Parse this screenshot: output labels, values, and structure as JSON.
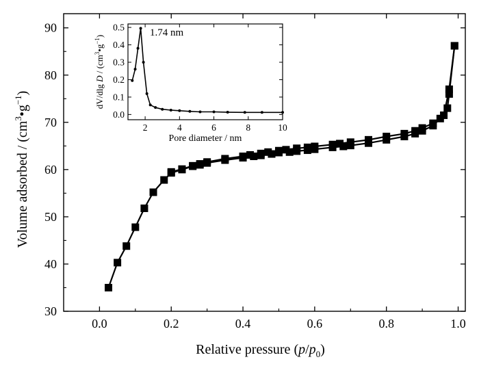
{
  "chart_data": [
    {
      "type": "scatter",
      "xlabel_parts": [
        "Relative pressure (",
        "p",
        "/",
        "p",
        "0",
        ")"
      ],
      "ylabel_parts": [
        "Volume adsorbed / (cm",
        "3",
        "•g",
        "−1",
        ")"
      ],
      "xlim": [
        -0.1,
        1.02
      ],
      "ylim": [
        30,
        93
      ],
      "x_ticks": [
        0.0,
        0.2,
        0.4,
        0.6,
        0.8,
        1.0
      ],
      "x_tick_labels": [
        "0.0",
        "0.2",
        "0.4",
        "0.6",
        "0.8",
        "1.0"
      ],
      "y_ticks": [
        30,
        40,
        50,
        60,
        70,
        80,
        90
      ],
      "y_tick_labels": [
        "30",
        "40",
        "50",
        "60",
        "70",
        "80",
        "90"
      ],
      "marker": "filled-square",
      "color": "#000000",
      "series": [
        {
          "x": [
            0.025,
            0.05,
            0.075,
            0.1,
            0.125,
            0.15,
            0.18,
            0.2,
            0.23,
            0.26,
            0.28,
            0.3,
            0.35,
            0.4,
            0.43,
            0.45,
            0.48,
            0.5,
            0.53,
            0.55,
            0.58,
            0.6,
            0.65,
            0.68,
            0.7,
            0.75,
            0.8,
            0.85,
            0.88,
            0.9,
            0.93,
            0.95,
            0.97,
            0.975,
            0.99
          ],
          "y": [
            35.0,
            40.3,
            43.8,
            47.8,
            51.8,
            55.2,
            57.8,
            59.3,
            60.0,
            60.7,
            61.0,
            61.4,
            62.0,
            62.5,
            62.8,
            63.0,
            63.3,
            63.6,
            63.7,
            63.9,
            64.1,
            64.3,
            64.7,
            64.9,
            65.1,
            65.6,
            66.3,
            67.0,
            67.6,
            68.2,
            69.3,
            70.8,
            73.0,
            76.0,
            86.2
          ]
        },
        {
          "x": [
            0.99,
            0.975,
            0.96,
            0.93,
            0.9,
            0.88,
            0.85,
            0.8,
            0.75,
            0.7,
            0.67,
            0.65,
            0.6,
            0.58,
            0.55,
            0.52,
            0.5,
            0.47,
            0.45,
            0.42,
            0.4,
            0.35,
            0.3,
            0.28,
            0.26,
            0.23,
            0.2
          ],
          "y": [
            86.2,
            77.0,
            71.5,
            69.8,
            68.8,
            68.2,
            67.6,
            67.0,
            66.3,
            65.8,
            65.5,
            65.3,
            64.9,
            64.7,
            64.5,
            64.2,
            64.0,
            63.7,
            63.4,
            63.1,
            62.8,
            62.3,
            61.6,
            61.2,
            60.8,
            60.1,
            59.5
          ]
        }
      ]
    },
    {
      "type": "line",
      "inset": true,
      "annotation": "1.74 nm",
      "xlabel": "Pore diameter / nm",
      "ylabel_parts": [
        "dV/dlg ",
        "D",
        " / (cm",
        "3",
        "•g",
        "−1",
        ")"
      ],
      "xlim": [
        1,
        10
      ],
      "ylim": [
        -0.03,
        0.52
      ],
      "x_ticks": [
        2,
        4,
        6,
        8,
        10
      ],
      "x_tick_labels": [
        "2",
        "4",
        "6",
        "8",
        "10"
      ],
      "y_ticks": [
        0.0,
        0.1,
        0.2,
        0.3,
        0.4,
        0.5
      ],
      "y_tick_labels": [
        "0.0",
        "0.1",
        "0.2",
        "0.3",
        "0.4",
        "0.5"
      ],
      "marker": "small-dot",
      "color": "#000000",
      "series": [
        {
          "x": [
            1.25,
            1.42,
            1.58,
            1.74,
            1.9,
            2.1,
            2.3,
            2.6,
            3.0,
            3.5,
            4.0,
            4.6,
            5.2,
            6.0,
            6.8,
            7.8,
            8.8,
            10.0
          ],
          "y": [
            0.195,
            0.26,
            0.38,
            0.495,
            0.3,
            0.12,
            0.055,
            0.04,
            0.03,
            0.025,
            0.022,
            0.018,
            0.015,
            0.015,
            0.013,
            0.012,
            0.012,
            0.012
          ]
        }
      ]
    }
  ]
}
